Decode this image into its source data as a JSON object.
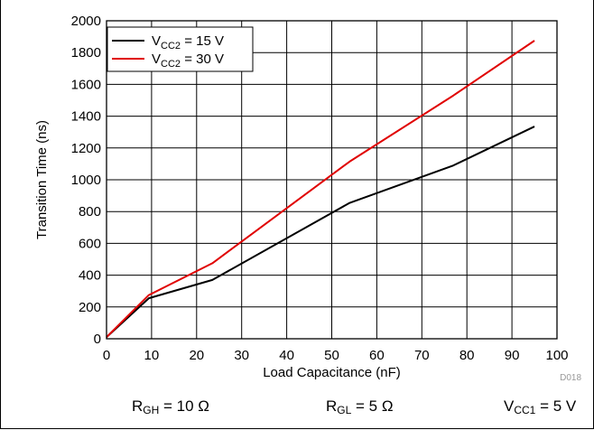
{
  "chart_data": {
    "type": "line",
    "xlabel": "Load Capacitance (nF)",
    "ylabel": "Transition Time (ns)",
    "xlim": [
      0,
      100
    ],
    "ylim": [
      0,
      2000
    ],
    "xticks": [
      0,
      10,
      20,
      30,
      40,
      50,
      60,
      70,
      80,
      90,
      100
    ],
    "yticks": [
      0,
      200,
      400,
      600,
      800,
      1000,
      1200,
      1400,
      1600,
      1800,
      2000
    ],
    "grid": true,
    "legend_position": "top-left",
    "figure_id": "D018",
    "series": [
      {
        "name_main": "V",
        "name_sub": "CC2",
        "name_tail": " = 15 V",
        "color": "#000000",
        "x": [
          0,
          9.4,
          23.5,
          54,
          77,
          95
        ],
        "y": [
          10,
          255,
          370,
          855,
          1090,
          1335
        ]
      },
      {
        "name_main": "V",
        "name_sub": "CC2",
        "name_tail": " = 30 V",
        "color": "#e00000",
        "x": [
          0,
          9.4,
          23.5,
          54,
          77,
          95
        ],
        "y": [
          10,
          275,
          475,
          1115,
          1530,
          1875
        ]
      }
    ]
  },
  "conditions": [
    {
      "main": "R",
      "sub": "GH",
      "tail": " = 10 Ω"
    },
    {
      "main": "R",
      "sub": "GL",
      "tail": " = 5 Ω"
    },
    {
      "main": "V",
      "sub": "CC1",
      "tail": " = 5 V"
    }
  ]
}
